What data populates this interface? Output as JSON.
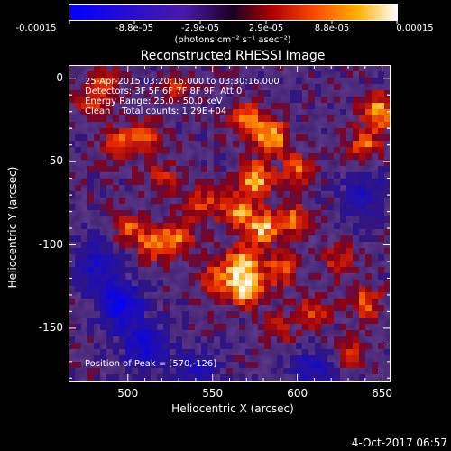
{
  "colorbar": {
    "tick_labels": [
      "-0.00015",
      "-8.8e-05",
      "-2.9e-05",
      "2.9e-05",
      "8.8e-05",
      "0.00015"
    ],
    "units": "(photons cm⁻² s⁻¹ asec⁻²)"
  },
  "annotation": {
    "line1": "25-Apr-2015 03:20:16.000 to 03:30:16.000",
    "line2": "Detectors: 3F 5F 6F 7F 8F 9F, Att 0",
    "line3": "Energy Range: 25.0 - 50.0 keV",
    "line4": "Clean    Total counts: 1.29E+04",
    "peak": "Position of Peak = [570,-126]"
  },
  "footer": {
    "date": "4-Oct-2017 06:57"
  },
  "chart_data": {
    "type": "heatmap",
    "title": "Reconstructed RHESSI Image",
    "xlabel": "Heliocentric X (arcsec)",
    "ylabel": "Heliocentric Y (arcsec)",
    "xlim": [
      465,
      655
    ],
    "ylim": [
      -182,
      8
    ],
    "xticks": [
      500,
      550,
      600,
      650
    ],
    "yticks": [
      0,
      -50,
      -100,
      -150
    ],
    "zlim": [
      -0.00015,
      0.00015
    ],
    "peak": [
      570,
      -126
    ],
    "bright_regions": [
      {
        "x": 570,
        "y": -126,
        "rel": 1.0
      },
      {
        "x": 568,
        "y": -110,
        "rel": 0.75
      },
      {
        "x": 553,
        "y": -120,
        "rel": 0.6
      },
      {
        "x": 590,
        "y": -115,
        "rel": 0.55
      },
      {
        "x": 580,
        "y": -90,
        "rel": 0.8
      },
      {
        "x": 565,
        "y": -80,
        "rel": 0.7
      },
      {
        "x": 600,
        "y": -85,
        "rel": 0.6
      },
      {
        "x": 575,
        "y": -60,
        "rel": 0.85
      },
      {
        "x": 585,
        "y": -35,
        "rel": 0.8
      },
      {
        "x": 570,
        "y": -25,
        "rel": 0.7
      },
      {
        "x": 600,
        "y": -55,
        "rel": 0.55
      },
      {
        "x": 545,
        "y": -75,
        "rel": 0.5
      },
      {
        "x": 530,
        "y": -95,
        "rel": 0.55
      },
      {
        "x": 515,
        "y": -100,
        "rel": 0.6
      },
      {
        "x": 500,
        "y": -90,
        "rel": 0.5
      },
      {
        "x": 495,
        "y": -40,
        "rel": 0.55
      },
      {
        "x": 510,
        "y": -35,
        "rel": 0.5
      },
      {
        "x": 480,
        "y": -15,
        "rel": 0.5
      },
      {
        "x": 485,
        "y": 0,
        "rel": 0.45
      },
      {
        "x": 530,
        "y": -5,
        "rel": 0.4
      },
      {
        "x": 648,
        "y": -20,
        "rel": 0.85
      },
      {
        "x": 640,
        "y": -40,
        "rel": 0.55
      },
      {
        "x": 625,
        "y": -110,
        "rel": 0.5
      },
      {
        "x": 640,
        "y": -135,
        "rel": 0.55
      },
      {
        "x": 610,
        "y": -140,
        "rel": 0.45
      },
      {
        "x": 630,
        "y": -165,
        "rel": 0.45
      },
      {
        "x": 520,
        "y": -60,
        "rel": 0.4
      },
      {
        "x": 590,
        "y": -150,
        "rel": 0.4
      }
    ],
    "dim_regions": [
      {
        "x": 495,
        "y": -135,
        "rel": 1.0
      },
      {
        "x": 510,
        "y": -160,
        "rel": 0.8
      },
      {
        "x": 480,
        "y": -110,
        "rel": 0.6
      },
      {
        "x": 610,
        "y": -175,
        "rel": 0.6
      },
      {
        "x": 640,
        "y": -70,
        "rel": 0.5
      },
      {
        "x": 540,
        "y": -175,
        "rel": 0.5
      }
    ]
  }
}
